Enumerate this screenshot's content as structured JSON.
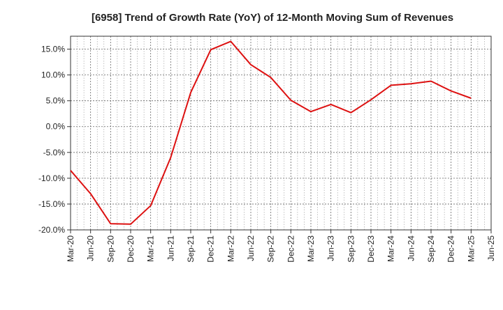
{
  "chart_data": {
    "type": "line",
    "title": "[6958]  Trend of Growth Rate (YoY) of 12-Month Moving Sum of Revenues",
    "xlabel": "",
    "ylabel": "",
    "x": [
      "Mar-20",
      "Jun-20",
      "Sep-20",
      "Dec-20",
      "Mar-21",
      "Jun-21",
      "Sep-21",
      "Dec-21",
      "Mar-22",
      "Jun-22",
      "Sep-22",
      "Dec-22",
      "Mar-23",
      "Jun-23",
      "Sep-23",
      "Dec-23",
      "Mar-24",
      "Jun-24",
      "Sep-24",
      "Dec-24",
      "Mar-25",
      "Jun-25"
    ],
    "series": [
      {
        "name": "",
        "color": "#dd1111",
        "values": [
          -8.5,
          -13.0,
          -18.8,
          -18.9,
          -15.3,
          -6.0,
          6.6,
          14.9,
          16.5,
          12.0,
          9.5,
          5.1,
          2.9,
          4.3,
          2.7,
          5.2,
          8.0,
          8.3,
          8.8,
          6.9,
          5.5,
          null
        ]
      }
    ],
    "ylim": [
      -20,
      17.5
    ],
    "yticks": [
      -20,
      -15,
      -10,
      -5,
      0,
      5,
      10,
      15
    ],
    "ytick_labels": [
      "-20.0%",
      "-15.0%",
      "-10.0%",
      "-5.0%",
      "0.0%",
      "5.0%",
      "10.0%",
      "15.0%"
    ],
    "grid": true,
    "legend": "none"
  }
}
